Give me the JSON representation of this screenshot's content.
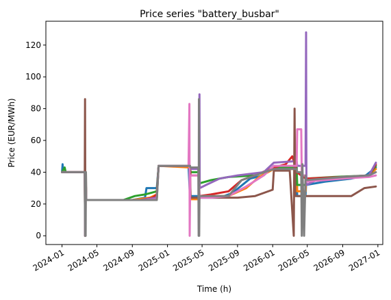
{
  "chart_data": {
    "type": "line",
    "title": "Price series \"battery_busbar\"",
    "xlabel": "Time (h)",
    "ylabel": "Price (EUR/MWh)",
    "xlim": [
      "2023-11-06",
      "2027-01-18"
    ],
    "ylim": [
      -5.5,
      135
    ],
    "x_ticks": [
      "2024-01",
      "2024-05",
      "2024-09",
      "2025-01",
      "2025-05",
      "2025-09",
      "2026-01",
      "2026-05",
      "2026-09",
      "2027-01"
    ],
    "y_ticks": [
      0,
      20,
      40,
      60,
      80,
      100,
      120
    ],
    "grid": false,
    "legend": "none",
    "series": [
      {
        "color": "#1f77b4",
        "points": [
          [
            "2024-01-01",
            40
          ],
          [
            "2024-01-03",
            45
          ],
          [
            "2024-01-05",
            40
          ],
          [
            "2024-03-20",
            40
          ],
          [
            "2024-03-21",
            0
          ],
          [
            "2024-03-23",
            40
          ],
          [
            "2024-03-25",
            22.5
          ],
          [
            "2024-09-01",
            22.5
          ],
          [
            "2024-10-15",
            24
          ],
          [
            "2024-10-20",
            30
          ],
          [
            "2024-11-25",
            30
          ],
          [
            "2024-12-01",
            44
          ],
          [
            "2025-03-15",
            44
          ],
          [
            "2025-03-20",
            25
          ],
          [
            "2025-04-20",
            25
          ],
          [
            "2025-04-22",
            24
          ],
          [
            "2025-07-01",
            24
          ],
          [
            "2025-08-15",
            27
          ],
          [
            "2025-10-15",
            36
          ],
          [
            "2025-12-01",
            38
          ],
          [
            "2026-01-05",
            44
          ],
          [
            "2026-03-25",
            43
          ],
          [
            "2026-03-27",
            25
          ],
          [
            "2026-04-25",
            25
          ],
          [
            "2026-04-27",
            32
          ],
          [
            "2026-07-01",
            34
          ],
          [
            "2026-10-01",
            36
          ],
          [
            "2026-11-20",
            38
          ],
          [
            "2026-12-25",
            43
          ]
        ]
      },
      {
        "color": "#ff7f0e",
        "points": [
          [
            "2024-01-01",
            40
          ],
          [
            "2024-03-20",
            40
          ],
          [
            "2024-03-21",
            0
          ],
          [
            "2024-03-23",
            40
          ],
          [
            "2024-03-25",
            22.5
          ],
          [
            "2024-09-01",
            22.5
          ],
          [
            "2024-11-01",
            24
          ],
          [
            "2024-11-25",
            26
          ],
          [
            "2024-12-01",
            44
          ],
          [
            "2025-03-20",
            43
          ],
          [
            "2025-03-22",
            23
          ],
          [
            "2025-04-22",
            23
          ],
          [
            "2025-04-24",
            25
          ],
          [
            "2025-08-01",
            25
          ],
          [
            "2025-10-01",
            30
          ],
          [
            "2025-11-15",
            37
          ],
          [
            "2026-01-05",
            42
          ],
          [
            "2026-03-25",
            42
          ],
          [
            "2026-03-27",
            28
          ],
          [
            "2026-04-25",
            28
          ],
          [
            "2026-04-27",
            35
          ],
          [
            "2026-09-01",
            36
          ],
          [
            "2026-12-01",
            38
          ],
          [
            "2026-12-25",
            42
          ]
        ]
      },
      {
        "color": "#2ca02c",
        "points": [
          [
            "2024-01-01",
            40
          ],
          [
            "2024-01-10",
            43
          ],
          [
            "2024-01-14",
            40
          ],
          [
            "2024-03-20",
            40
          ],
          [
            "2024-03-21",
            0
          ],
          [
            "2024-03-23",
            40
          ],
          [
            "2024-03-25",
            22.5
          ],
          [
            "2024-08-01",
            22.5
          ],
          [
            "2024-09-10",
            25
          ],
          [
            "2024-10-15",
            26
          ],
          [
            "2024-11-25",
            28
          ],
          [
            "2024-12-01",
            44
          ],
          [
            "2025-03-20",
            44
          ],
          [
            "2025-03-22",
            40
          ],
          [
            "2025-04-20",
            40
          ],
          [
            "2025-04-22",
            33
          ],
          [
            "2025-06-01",
            35
          ],
          [
            "2025-08-01",
            37
          ],
          [
            "2025-11-01",
            38
          ],
          [
            "2026-01-05",
            43
          ],
          [
            "2026-03-25",
            43
          ],
          [
            "2026-03-27",
            32
          ],
          [
            "2026-04-25",
            32
          ],
          [
            "2026-04-27",
            36
          ],
          [
            "2026-08-01",
            37
          ],
          [
            "2026-12-01",
            38
          ],
          [
            "2026-12-25",
            44
          ]
        ]
      },
      {
        "color": "#d62728",
        "points": [
          [
            "2024-01-01",
            40
          ],
          [
            "2024-03-20",
            40
          ],
          [
            "2024-03-21",
            0
          ],
          [
            "2024-03-23",
            40
          ],
          [
            "2024-03-25",
            22.5
          ],
          [
            "2024-10-01",
            22.5
          ],
          [
            "2024-11-10",
            24
          ],
          [
            "2024-11-25",
            26
          ],
          [
            "2024-12-01",
            44
          ],
          [
            "2025-03-20",
            44
          ],
          [
            "2025-03-22",
            38
          ],
          [
            "2025-04-20",
            38
          ],
          [
            "2025-04-22",
            25
          ],
          [
            "2025-06-01",
            26
          ],
          [
            "2025-08-01",
            28
          ],
          [
            "2025-09-15",
            35
          ],
          [
            "2025-11-01",
            38
          ],
          [
            "2026-01-05",
            43
          ],
          [
            "2026-02-15",
            45
          ],
          [
            "2026-03-10",
            50
          ],
          [
            "2026-03-20",
            44
          ],
          [
            "2026-03-25",
            40
          ],
          [
            "2026-04-25",
            36
          ],
          [
            "2026-04-27",
            36
          ],
          [
            "2026-09-01",
            37
          ],
          [
            "2026-12-01",
            38
          ],
          [
            "2026-12-25",
            45
          ]
        ]
      },
      {
        "color": "#9467bd",
        "points": [
          [
            "2024-01-01",
            40
          ],
          [
            "2024-03-20",
            40
          ],
          [
            "2024-03-21",
            0
          ],
          [
            "2024-03-23",
            40
          ],
          [
            "2024-03-25",
            22.5
          ],
          [
            "2024-10-01",
            22.5
          ],
          [
            "2024-11-25",
            24
          ],
          [
            "2024-12-01",
            44
          ],
          [
            "2025-03-20",
            44
          ],
          [
            "2025-03-22",
            42
          ],
          [
            "2025-04-20",
            42
          ],
          [
            "2025-04-22",
            89
          ],
          [
            "2025-04-23",
            30
          ],
          [
            "2025-05-15",
            32
          ],
          [
            "2025-07-01",
            36
          ],
          [
            "2025-09-01",
            38
          ],
          [
            "2025-12-01",
            40
          ],
          [
            "2026-01-05",
            46
          ],
          [
            "2026-03-25",
            47
          ],
          [
            "2026-03-27",
            44
          ],
          [
            "2026-04-25",
            44
          ],
          [
            "2026-04-27",
            128
          ],
          [
            "2026-04-28",
            32
          ],
          [
            "2026-06-01",
            35
          ],
          [
            "2026-09-01",
            37
          ],
          [
            "2026-12-01",
            38
          ],
          [
            "2026-12-25",
            46
          ]
        ]
      },
      {
        "color": "#8c564b",
        "points": [
          [
            "2024-01-01",
            40
          ],
          [
            "2024-03-20",
            40
          ],
          [
            "2024-03-21",
            86
          ],
          [
            "2024-03-22",
            0
          ],
          [
            "2024-03-24",
            40
          ],
          [
            "2024-03-25",
            22.5
          ],
          [
            "2024-10-01",
            22.5
          ],
          [
            "2024-11-25",
            23
          ],
          [
            "2024-12-01",
            44
          ],
          [
            "2025-03-20",
            44
          ],
          [
            "2025-03-22",
            24
          ],
          [
            "2025-04-20",
            24
          ],
          [
            "2025-04-22",
            24
          ],
          [
            "2025-09-01",
            24
          ],
          [
            "2025-11-01",
            25
          ],
          [
            "2026-01-01",
            29
          ],
          [
            "2026-01-05",
            41
          ],
          [
            "2026-03-01",
            41
          ],
          [
            "2026-03-15",
            0
          ],
          [
            "2026-03-18",
            80
          ],
          [
            "2026-03-20",
            25
          ],
          [
            "2026-04-25",
            25
          ],
          [
            "2026-04-27",
            25
          ],
          [
            "2026-10-01",
            25
          ],
          [
            "2026-11-15",
            30
          ],
          [
            "2026-12-25",
            31
          ]
        ]
      },
      {
        "color": "#e377c2",
        "points": [
          [
            "2024-01-01",
            40
          ],
          [
            "2024-03-20",
            40
          ],
          [
            "2024-03-21",
            0
          ],
          [
            "2024-03-23",
            40
          ],
          [
            "2024-03-25",
            22.5
          ],
          [
            "2024-10-01",
            22.5
          ],
          [
            "2024-11-25",
            23
          ],
          [
            "2024-12-01",
            44
          ],
          [
            "2025-03-15",
            44
          ],
          [
            "2025-03-18",
            83
          ],
          [
            "2025-03-19",
            0
          ],
          [
            "2025-03-21",
            38
          ],
          [
            "2025-04-20",
            38
          ],
          [
            "2025-04-22",
            24
          ],
          [
            "2025-06-01",
            24
          ],
          [
            "2025-08-01",
            25
          ],
          [
            "2025-10-01",
            31
          ],
          [
            "2025-12-01",
            38
          ],
          [
            "2026-01-05",
            44
          ],
          [
            "2026-03-25",
            44
          ],
          [
            "2026-03-27",
            67
          ],
          [
            "2026-04-10",
            67
          ],
          [
            "2026-04-12",
            38
          ],
          [
            "2026-04-25",
            38
          ],
          [
            "2026-04-27",
            34
          ],
          [
            "2026-09-01",
            36
          ],
          [
            "2026-12-01",
            37
          ],
          [
            "2026-12-25",
            38
          ]
        ]
      },
      {
        "color": "#7f7f7f",
        "points": [
          [
            "2024-01-01",
            40
          ],
          [
            "2024-03-20",
            40
          ],
          [
            "2024-03-21",
            0
          ],
          [
            "2024-03-22",
            40
          ],
          [
            "2024-03-23",
            0
          ],
          [
            "2024-03-24",
            40
          ],
          [
            "2024-03-25",
            22.5
          ],
          [
            "2024-10-01",
            22.5
          ],
          [
            "2024-11-25",
            22.5
          ],
          [
            "2024-12-01",
            44
          ],
          [
            "2025-03-20",
            44
          ],
          [
            "2025-03-22",
            43
          ],
          [
            "2025-04-18",
            43
          ],
          [
            "2025-04-19",
            0
          ],
          [
            "2025-04-20",
            86
          ],
          [
            "2025-04-21",
            0
          ],
          [
            "2025-04-22",
            25
          ],
          [
            "2025-08-01",
            25
          ],
          [
            "2025-09-15",
            35
          ],
          [
            "2025-11-01",
            38
          ],
          [
            "2026-01-05",
            42
          ],
          [
            "2026-03-25",
            42
          ],
          [
            "2026-03-27",
            40
          ],
          [
            "2026-04-10",
            40
          ],
          [
            "2026-04-12",
            0
          ],
          [
            "2026-04-14",
            45
          ],
          [
            "2026-04-20",
            0
          ],
          [
            "2026-04-25",
            38
          ],
          [
            "2026-04-27",
            35
          ],
          [
            "2026-09-01",
            37
          ],
          [
            "2026-12-01",
            38
          ],
          [
            "2026-12-25",
            40
          ]
        ]
      }
    ]
  }
}
